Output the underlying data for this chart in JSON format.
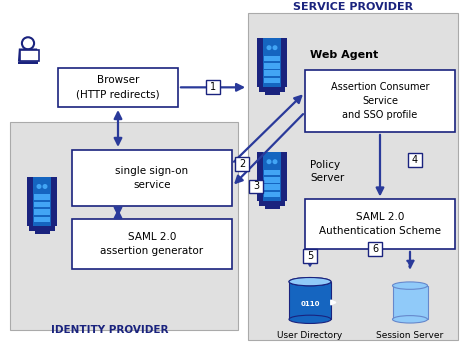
{
  "white": "#ffffff",
  "dark_blue": "#1a237e",
  "mid_blue": "#1565c0",
  "med_blue": "#2a52be",
  "light_blue": "#42a5f5",
  "lighter_blue": "#90caf9",
  "arrow_color": "#2a3a9a",
  "light_bg": "#e0e0e0",
  "sp_label": "SERVICE PROVIDER",
  "idp_label": "IDENTITY PROVIDER",
  "browser_label": "Browser\n(HTTP redirects)",
  "sso_label": "single sign-on\nservice",
  "saml_gen_label": "SAML 2.0\nassertion generator",
  "web_agent_label": "Web Agent",
  "acs_label": "Assertion Consumer\nService\nand SSO profile",
  "policy_label": "Policy\nServer",
  "saml_auth_label": "SAML 2.0\nAuthentication Scheme",
  "user_dir_label": "User Directory",
  "session_label": "Session Server"
}
